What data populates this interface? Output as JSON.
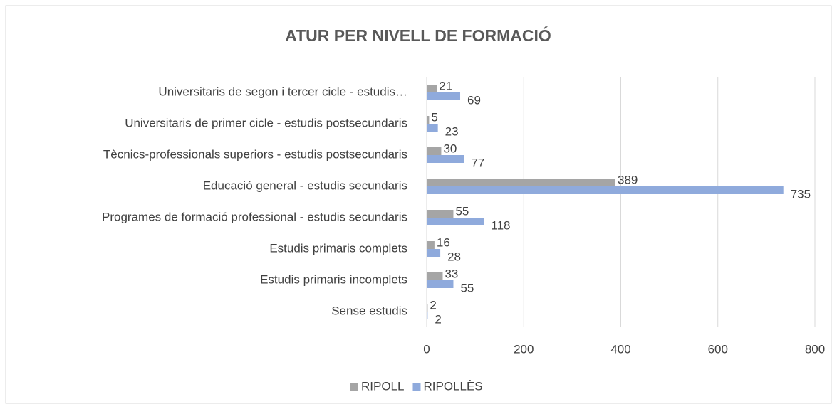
{
  "chart_data": {
    "type": "bar",
    "orientation": "horizontal",
    "title": "ATUR PER NIVELL DE FORMACIÓ",
    "categories": [
      "Universitaris de segon i tercer cicle - estudis…",
      "Universitaris de primer cicle - estudis postsecundaris",
      "Tècnics-professionals superiors - estudis postsecundaris",
      "Educació general - estudis secundaris",
      "Programes de formació professional - estudis secundaris",
      "Estudis primaris complets",
      "Estudis primaris incomplets",
      "Sense estudis"
    ],
    "series": [
      {
        "name": "RIPOLL",
        "color": "#a5a5a5",
        "values": [
          21,
          5,
          30,
          389,
          55,
          16,
          33,
          2
        ]
      },
      {
        "name": "RIPOLLÈS",
        "color": "#8faadc",
        "values": [
          69,
          23,
          77,
          735,
          118,
          28,
          55,
          2
        ]
      }
    ],
    "xlim": [
      0,
      800
    ],
    "xticks": [
      0,
      200,
      400,
      600,
      800
    ],
    "grid": true,
    "legend": "bottom"
  }
}
